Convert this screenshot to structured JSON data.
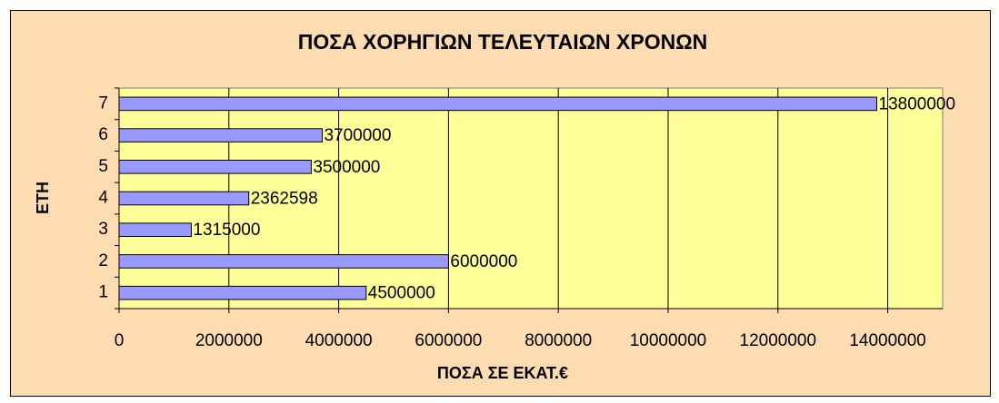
{
  "chart_data": {
    "type": "bar",
    "orientation": "horizontal",
    "title": "ΠΟΣΑ ΧΟΡΗΓΙΩΝ ΤΕΛΕΥΤΑΙΩΝ ΧΡΟΝΩΝ",
    "x_label": "ΠΟΣΑ ΣΕ ΕΚΑΤ.€",
    "y_label": "ΕΤΗ",
    "categories": [
      "1",
      "2",
      "3",
      "4",
      "5",
      "6",
      "7"
    ],
    "values": [
      4500000,
      6000000,
      1315000,
      2362598,
      3500000,
      3700000,
      13800000
    ],
    "color": "#9999ff",
    "xlim": [
      0,
      15000000
    ],
    "xticks": [
      0,
      2000000,
      4000000,
      6000000,
      8000000,
      10000000,
      12000000,
      14000000
    ],
    "grid": true
  }
}
